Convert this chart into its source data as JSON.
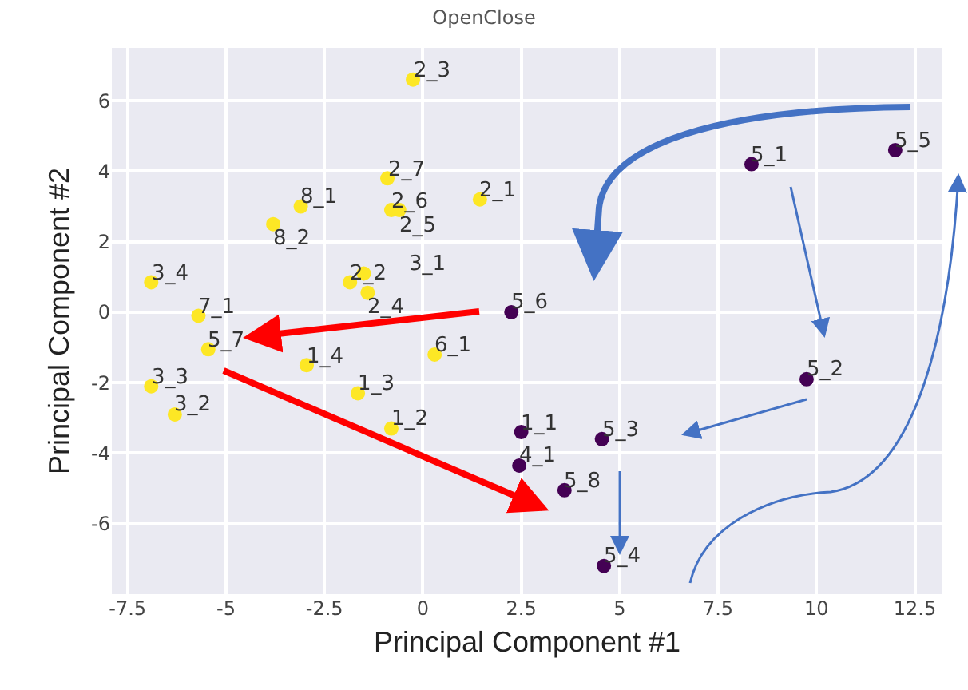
{
  "chart_data": {
    "type": "scatter",
    "title": "OpenClose",
    "xlabel": "Principal Component #1",
    "ylabel": "Principal Component #2",
    "xlim": [
      -7.9,
      13.2
    ],
    "ylim": [
      -8,
      7.5
    ],
    "xticks": [
      -7.5,
      -5.0,
      -2.5,
      0.0,
      2.5,
      5.0,
      7.5,
      10.0,
      12.5
    ],
    "yticks": [
      -6,
      -4,
      -2,
      0,
      2,
      4,
      6
    ],
    "grid": true,
    "marker": "circle",
    "series": [
      {
        "color": "#fde725",
        "x": [
          -0.25,
          -0.9,
          -0.8,
          -0.6,
          1.45,
          -3.1,
          -3.8,
          -6.9,
          -5.7,
          -5.45,
          -6.9,
          -6.3,
          -1.85,
          -1.5,
          -1.4,
          -2.95,
          -1.65,
          -0.8,
          0.3
        ],
        "values": [
          6.6,
          3.8,
          2.9,
          2.9,
          3.2,
          3.0,
          2.5,
          0.85,
          -0.1,
          -1.05,
          -2.1,
          -2.9,
          0.85,
          1.1,
          0.55,
          -1.5,
          -2.3,
          -3.3,
          -1.2
        ]
      },
      {
        "color": "#440154",
        "x": [
          2.25,
          8.35,
          12.0,
          9.75,
          2.5,
          4.55,
          2.45,
          3.6,
          4.6
        ],
        "values": [
          0.0,
          4.2,
          4.6,
          -1.9,
          -3.4,
          -3.6,
          -4.35,
          -5.05,
          -7.2
        ]
      }
    ],
    "annotations": [
      {
        "text": "2_3",
        "x": -0.25,
        "y": 6.6
      },
      {
        "text": "2_7",
        "x": -0.9,
        "y": 3.8
      },
      {
        "text": "2_6",
        "x": -0.8,
        "y": 2.9
      },
      {
        "text": "2_5",
        "x": -0.6,
        "y": 2.9
      },
      {
        "text": "2_1",
        "x": 1.45,
        "y": 3.2
      },
      {
        "text": "8_1",
        "x": -3.1,
        "y": 3.0
      },
      {
        "text": "8_2",
        "x": -3.8,
        "y": 2.5
      },
      {
        "text": "3_4",
        "x": -6.9,
        "y": 0.85
      },
      {
        "text": "7_1",
        "x": -5.7,
        "y": -0.1
      },
      {
        "text": "5_7",
        "x": -5.45,
        "y": -1.05
      },
      {
        "text": "3_3",
        "x": -6.9,
        "y": -2.1
      },
      {
        "text": "3_2",
        "x": -6.3,
        "y": -2.9
      },
      {
        "text": "2_2",
        "x": -1.85,
        "y": 0.85
      },
      {
        "text": "3_1",
        "x": -1.5,
        "y": 1.1
      },
      {
        "text": "2_4",
        "x": -1.4,
        "y": 0.55
      },
      {
        "text": "1_4",
        "x": -2.95,
        "y": -1.5
      },
      {
        "text": "1_3",
        "x": -1.65,
        "y": -2.3
      },
      {
        "text": "1_2",
        "x": -0.8,
        "y": -3.3
      },
      {
        "text": "6_1",
        "x": 0.3,
        "y": -1.2
      },
      {
        "text": "5_6",
        "x": 2.25,
        "y": 0.0
      },
      {
        "text": "5_1",
        "x": 8.35,
        "y": 4.2
      },
      {
        "text": "5_5",
        "x": 12.0,
        "y": 4.6
      },
      {
        "text": "5_2",
        "x": 9.75,
        "y": -1.9
      },
      {
        "text": "1_1",
        "x": 2.5,
        "y": -3.4
      },
      {
        "text": "5_3",
        "x": 4.55,
        "y": -3.6
      },
      {
        "text": "4_1",
        "x": 2.45,
        "y": -4.35
      },
      {
        "text": "5_8",
        "x": 3.6,
        "y": -5.05
      },
      {
        "text": "5_4",
        "x": 4.6,
        "y": -7.2
      }
    ]
  }
}
